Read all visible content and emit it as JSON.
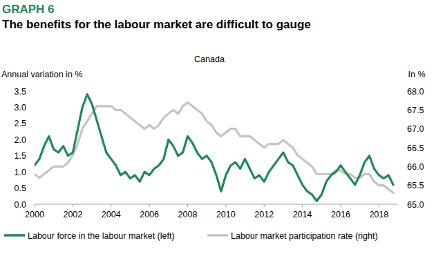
{
  "chart_data": {
    "type": "line",
    "figure_number": "GRAPH 6",
    "title": "The benefits for the labour market are difficult to gauge",
    "subtitle": "Canada",
    "ylabel": "Annual variation in %",
    "y2label": "In %",
    "x": [
      2000,
      2000.25,
      2000.5,
      2000.75,
      2001,
      2001.25,
      2001.5,
      2001.75,
      2002,
      2002.25,
      2002.5,
      2002.75,
      2003,
      2003.25,
      2003.5,
      2003.75,
      2004,
      2004.25,
      2004.5,
      2004.75,
      2005,
      2005.25,
      2005.5,
      2005.75,
      2006,
      2006.25,
      2006.5,
      2006.75,
      2007,
      2007.25,
      2007.5,
      2007.75,
      2008,
      2008.25,
      2008.5,
      2008.75,
      2009,
      2009.25,
      2009.5,
      2009.75,
      2010,
      2010.25,
      2010.5,
      2010.75,
      2011,
      2011.25,
      2011.5,
      2011.75,
      2012,
      2012.25,
      2012.5,
      2012.75,
      2013,
      2013.25,
      2013.5,
      2013.75,
      2014,
      2014.25,
      2014.5,
      2014.75,
      2015,
      2015.25,
      2015.5,
      2015.75,
      2016,
      2016.25,
      2016.5,
      2016.75,
      2017,
      2017.25,
      2017.5,
      2017.75,
      2018,
      2018.25,
      2018.5,
      2018.75
    ],
    "series": [
      {
        "name": "Labour force in the labour market (left)",
        "color": "#1f8a55",
        "values": [
          1.2,
          1.4,
          1.8,
          2.1,
          1.7,
          1.6,
          1.8,
          1.5,
          1.6,
          2.3,
          3.0,
          3.4,
          3.1,
          2.6,
          2.1,
          1.6,
          1.4,
          1.2,
          0.9,
          1.0,
          0.8,
          0.9,
          0.7,
          1.0,
          0.9,
          1.1,
          1.2,
          1.4,
          2.0,
          1.8,
          1.5,
          1.6,
          2.1,
          1.9,
          1.6,
          1.4,
          1.5,
          1.3,
          0.9,
          0.4,
          0.9,
          1.2,
          1.3,
          1.1,
          1.4,
          1.1,
          0.8,
          0.9,
          0.7,
          1.0,
          1.2,
          1.4,
          1.6,
          1.3,
          1.2,
          0.9,
          0.6,
          0.4,
          0.3,
          0.1,
          0.3,
          0.7,
          0.9,
          1.0,
          1.2,
          1.0,
          0.8,
          0.6,
          0.9,
          1.3,
          1.5,
          1.1,
          0.9,
          0.8,
          0.9,
          0.6
        ]
      },
      {
        "name": "Labour market participation rate (right)",
        "color": "#c4c4c4",
        "axis": "y2",
        "values": [
          65.8,
          65.7,
          65.8,
          65.9,
          66.0,
          66.0,
          66.0,
          66.1,
          66.3,
          66.6,
          67.0,
          67.2,
          67.4,
          67.6,
          67.6,
          67.6,
          67.6,
          67.5,
          67.5,
          67.4,
          67.3,
          67.2,
          67.1,
          67.0,
          67.1,
          67.0,
          67.1,
          67.3,
          67.4,
          67.5,
          67.4,
          67.6,
          67.7,
          67.6,
          67.5,
          67.4,
          67.2,
          67.1,
          66.9,
          66.8,
          66.9,
          67.0,
          67.0,
          66.8,
          66.8,
          66.8,
          66.7,
          66.6,
          66.5,
          66.6,
          66.6,
          66.6,
          66.7,
          66.6,
          66.5,
          66.3,
          66.2,
          66.1,
          66.0,
          65.8,
          65.8,
          65.8,
          65.8,
          65.9,
          65.9,
          65.8,
          65.8,
          65.7,
          65.7,
          65.8,
          65.8,
          65.6,
          65.5,
          65.5,
          65.4,
          65.3
        ]
      }
    ],
    "xlim": [
      2000,
      2019
    ],
    "xticks": [
      2000,
      2002,
      2004,
      2006,
      2008,
      2010,
      2012,
      2014,
      2016,
      2018
    ],
    "ylim": [
      0,
      3.5
    ],
    "yticks": [
      {
        "value": 0,
        "label": "0.0"
      },
      0.5,
      {
        "value": 1,
        "label": "1.0"
      },
      1.5,
      {
        "value": 2,
        "label": "2.0"
      },
      2.5,
      {
        "value": 3,
        "label": "3.0"
      },
      3.5
    ],
    "y2lim": [
      65,
      68
    ],
    "y2ticks": [
      {
        "value": 65,
        "label": "65.0"
      },
      65.5,
      {
        "value": 66,
        "label": "66.0"
      },
      66.5,
      {
        "value": 67,
        "label": "67.0"
      },
      67.5,
      {
        "value": 68,
        "label": "68.0"
      }
    ],
    "grid": false,
    "legend": "bottom"
  }
}
